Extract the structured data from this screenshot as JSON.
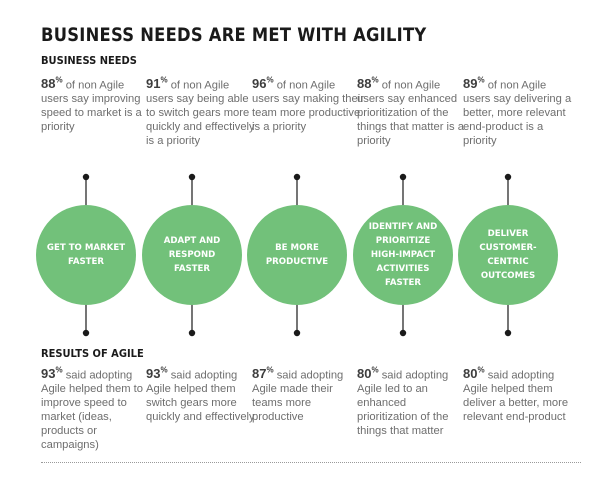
{
  "title": "BUSINESS NEEDS ARE MET WITH AGILITY",
  "needs_label": "BUSINESS NEEDS",
  "results_label": "RESULTS OF AGILE",
  "columns": [
    {
      "need_pct": "88",
      "need_text": "of non Agile users say improving speed to market is a priority",
      "circle": "GET TO MARKET FASTER",
      "result_pct": "93",
      "result_text": "said adopting Agile helped them to improve speed to market (ideas, products or campaigns)"
    },
    {
      "need_pct": "91",
      "need_text": "of non Agile users say being able to switch gears more quickly and effectively is a priority",
      "circle": "ADAPT AND RESPOND FASTER",
      "result_pct": "93",
      "result_text": "said adopting Agile helped them switch gears more quickly and effectively"
    },
    {
      "need_pct": "96",
      "need_text": "of non Agile users say making their team more productive is a priority",
      "circle": "BE MORE PRODUCTIVE",
      "result_pct": "87",
      "result_text": "said adopting Agile made their teams more productive"
    },
    {
      "need_pct": "88",
      "need_text": "of non Agile users say enhanced prioritization of the things that matter is a priority",
      "circle": "IDENTIFY AND PRIORITIZE HIGH-IMPACT ACTIVITIES FASTER",
      "result_pct": "80",
      "result_text": "said adopting Agile led to an enhanced prioritization of the things that matter"
    },
    {
      "need_pct": "89",
      "need_text": "of non Agile users say delivering a better, more relevant end-product is a priority",
      "circle": "DELIVER CUSTOMER-CENTRIC OUTCOMES",
      "result_pct": "80",
      "result_text": "said adopting Agile helped them deliver a better, more relevant end-product"
    }
  ],
  "colors": {
    "circle": "#72c17a",
    "text": "#6e6e6e",
    "title": "#1a1a1a"
  }
}
